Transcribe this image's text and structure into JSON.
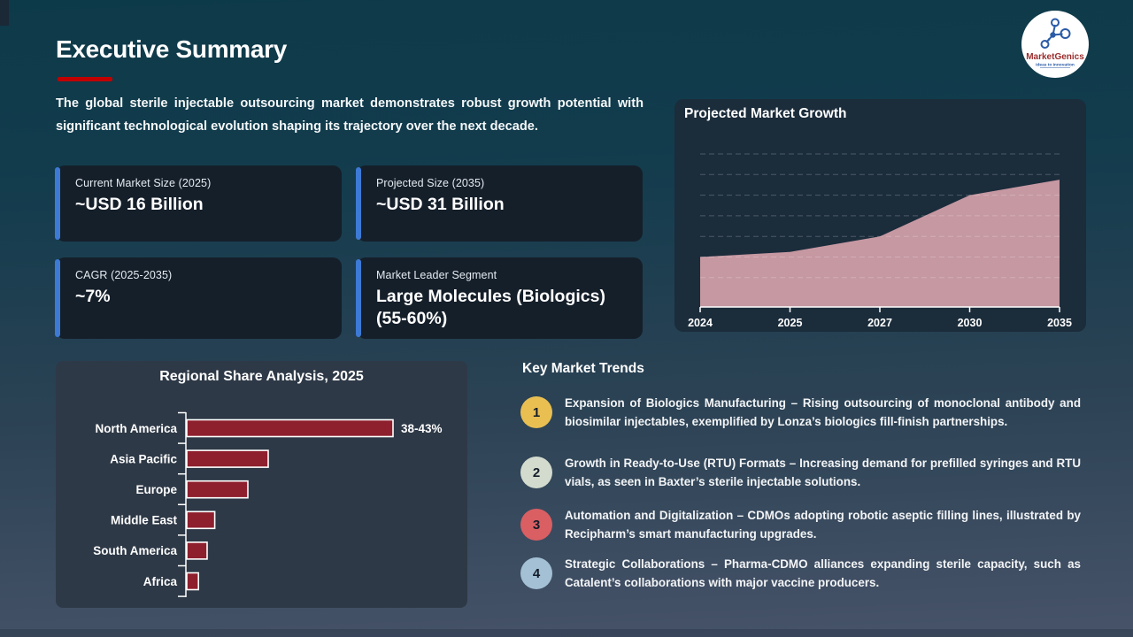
{
  "slide": {
    "title": "Executive Summary",
    "intro": "The global sterile injectable outsourcing market demonstrates robust growth potential with significant technological evolution shaping its trajectory over the next decade."
  },
  "logo": {
    "name": "MarketGenics",
    "tagline": "Ideas to Innovation",
    "name_color": "#9b2c2c",
    "icon_color": "#2a5ba6"
  },
  "stats": [
    {
      "label": "Current Market Size (2025)",
      "value": "~USD 16 Billion"
    },
    {
      "label": "Projected Size (2035)",
      "value": "~USD 31 Billion"
    },
    {
      "label": "CAGR (2025-2035)",
      "value": "~7%"
    },
    {
      "label": "Market Leader Segment",
      "value": "Large Molecules (Biologics) (55-60%)"
    }
  ],
  "trends": {
    "title": "Key Market Trends",
    "items": [
      {
        "number": "1",
        "color": "#e9bf52",
        "text": "Expansion of Biologics Manufacturing – Rising outsourcing of monoclonal antibody and biosimilar injectables, exemplified by Lonza’s biologics fill-finish partnerships."
      },
      {
        "number": "2",
        "color": "#d3dbce",
        "text": "Growth in Ready-to-Use (RTU) Formats – Increasing demand for prefilled syringes and RTU vials, as seen in Baxter’s sterile injectable solutions."
      },
      {
        "number": "3",
        "color": "#d95f63",
        "text": "Automation and Digitalization – CDMOs adopting robotic aseptic filling lines, illustrated by Recipharm’s smart manufacturing upgrades."
      },
      {
        "number": "4",
        "color": "#a3c0d4",
        "text": "Strategic Collaborations – Pharma-CDMO alliances expanding sterile capacity, such as Catalent’s collaborations with major vaccine producers."
      }
    ]
  },
  "chart_data": [
    {
      "type": "area",
      "title": "Projected Market Growth",
      "x": [
        "2024",
        "2025",
        "2027",
        "2030",
        "2035"
      ],
      "values": [
        16,
        17,
        20,
        28,
        31
      ],
      "ylim": [
        6.3,
        36
      ],
      "gridlines": [
        12,
        16,
        20,
        24,
        28,
        32,
        36
      ],
      "grid": "dashed",
      "area_color": "#c698a2",
      "axis_color": "#ffffff",
      "legend": "none"
    },
    {
      "type": "bar",
      "orientation": "horizontal",
      "title": "Regional Share Analysis, 2025",
      "categories": [
        "North America",
        "Asia Pacific",
        "Europe",
        "Middle East",
        "South America",
        "Africa"
      ],
      "values": [
        40.5,
        16,
        12,
        5.5,
        4,
        2.3
      ],
      "value_labels": [
        "38-43%",
        "",
        "",
        "",
        "",
        ""
      ],
      "xlim": [
        0,
        45
      ],
      "bar_color": "#8e1f2d",
      "bar_border_color": "#ffffff",
      "grid": "off",
      "legend": "none"
    }
  ]
}
